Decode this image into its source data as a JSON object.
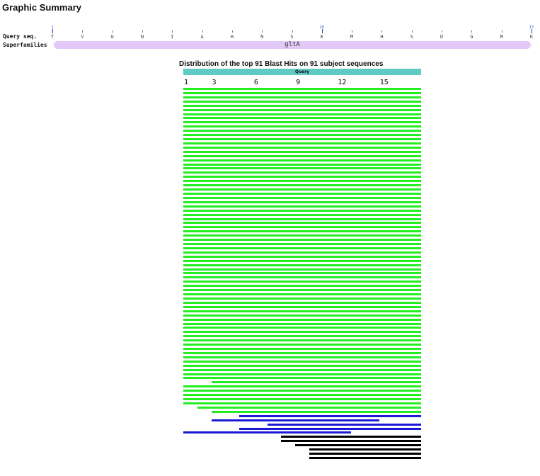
{
  "page": {
    "title": "Graphic Summary"
  },
  "cdd": {
    "query_label": "Query seq.",
    "superfamilies_label": "Superfamilies",
    "residues": [
      "T",
      "V",
      "G",
      "N",
      "I",
      "A",
      "H",
      "N",
      "S",
      "E",
      "M",
      "H",
      "S",
      "D",
      "G",
      "M",
      "K"
    ],
    "position_numbers": [
      {
        "pos": 1,
        "label": "1"
      },
      {
        "pos": 10,
        "label": "10"
      },
      {
        "pos": 17,
        "label": "17"
      }
    ],
    "superfamily": {
      "name": "gltA",
      "color": "#e2c9f7"
    }
  },
  "distribution": {
    "title": "Distribution of the top 91 Blast Hits on 91 subject sequences",
    "query_label": "Query",
    "query_color": "#5fc9c3",
    "query_length": 17,
    "axis_ticks": [
      "1",
      "3",
      "6",
      "9",
      "12",
      "15"
    ]
  },
  "score_colors": {
    "green": "#22ee22",
    "blue": "#1a1ad6",
    "black": "#000000"
  },
  "hits": [
    {
      "start": 1,
      "end": 17,
      "color": "green"
    },
    {
      "start": 1,
      "end": 17,
      "color": "green"
    },
    {
      "start": 1,
      "end": 17,
      "color": "green"
    },
    {
      "start": 1,
      "end": 17,
      "color": "green"
    },
    {
      "start": 1,
      "end": 17,
      "color": "green"
    },
    {
      "start": 1,
      "end": 17,
      "color": "green"
    },
    {
      "start": 1,
      "end": 17,
      "color": "green"
    },
    {
      "start": 1,
      "end": 17,
      "color": "green"
    },
    {
      "start": 1,
      "end": 17,
      "color": "green"
    },
    {
      "start": 1,
      "end": 17,
      "color": "green"
    },
    {
      "start": 1,
      "end": 17,
      "color": "green"
    },
    {
      "start": 1,
      "end": 17,
      "color": "green"
    },
    {
      "start": 1,
      "end": 17,
      "color": "green"
    },
    {
      "start": 1,
      "end": 17,
      "color": "green"
    },
    {
      "start": 1,
      "end": 17,
      "color": "green"
    },
    {
      "start": 1,
      "end": 17,
      "color": "green"
    },
    {
      "start": 1,
      "end": 17,
      "color": "green"
    },
    {
      "start": 1,
      "end": 17,
      "color": "green"
    },
    {
      "start": 1,
      "end": 17,
      "color": "green"
    },
    {
      "start": 1,
      "end": 17,
      "color": "green"
    },
    {
      "start": 1,
      "end": 17,
      "color": "green"
    },
    {
      "start": 1,
      "end": 17,
      "color": "green"
    },
    {
      "start": 1,
      "end": 17,
      "color": "green"
    },
    {
      "start": 1,
      "end": 17,
      "color": "green"
    },
    {
      "start": 1,
      "end": 17,
      "color": "green"
    },
    {
      "start": 1,
      "end": 17,
      "color": "green"
    },
    {
      "start": 1,
      "end": 17,
      "color": "green"
    },
    {
      "start": 1,
      "end": 17,
      "color": "green"
    },
    {
      "start": 1,
      "end": 17,
      "color": "green"
    },
    {
      "start": 1,
      "end": 17,
      "color": "green"
    },
    {
      "start": 1,
      "end": 17,
      "color": "green"
    },
    {
      "start": 1,
      "end": 17,
      "color": "green"
    },
    {
      "start": 1,
      "end": 17,
      "color": "green"
    },
    {
      "start": 1,
      "end": 17,
      "color": "green"
    },
    {
      "start": 1,
      "end": 17,
      "color": "green"
    },
    {
      "start": 1,
      "end": 17,
      "color": "green"
    },
    {
      "start": 1,
      "end": 17,
      "color": "green"
    },
    {
      "start": 1,
      "end": 17,
      "color": "green"
    },
    {
      "start": 1,
      "end": 17,
      "color": "green"
    },
    {
      "start": 1,
      "end": 17,
      "color": "green"
    },
    {
      "start": 1,
      "end": 17,
      "color": "green"
    },
    {
      "start": 1,
      "end": 17,
      "color": "green"
    },
    {
      "start": 1,
      "end": 17,
      "color": "green"
    },
    {
      "start": 1,
      "end": 17,
      "color": "green"
    },
    {
      "start": 1,
      "end": 17,
      "color": "green"
    },
    {
      "start": 1,
      "end": 17,
      "color": "green"
    },
    {
      "start": 1,
      "end": 17,
      "color": "green"
    },
    {
      "start": 1,
      "end": 17,
      "color": "green"
    },
    {
      "start": 1,
      "end": 17,
      "color": "green"
    },
    {
      "start": 1,
      "end": 17,
      "color": "green"
    },
    {
      "start": 1,
      "end": 17,
      "color": "green"
    },
    {
      "start": 1,
      "end": 17,
      "color": "green"
    },
    {
      "start": 1,
      "end": 17,
      "color": "green"
    },
    {
      "start": 1,
      "end": 17,
      "color": "green"
    },
    {
      "start": 1,
      "end": 17,
      "color": "green"
    },
    {
      "start": 1,
      "end": 17,
      "color": "green"
    },
    {
      "start": 1,
      "end": 17,
      "color": "green"
    },
    {
      "start": 1,
      "end": 17,
      "color": "green"
    },
    {
      "start": 1,
      "end": 17,
      "color": "green"
    },
    {
      "start": 1,
      "end": 17,
      "color": "green"
    },
    {
      "start": 1,
      "end": 17,
      "color": "green"
    },
    {
      "start": 1,
      "end": 17,
      "color": "green"
    },
    {
      "start": 1,
      "end": 17,
      "color": "green"
    },
    {
      "start": 1,
      "end": 17,
      "color": "green"
    },
    {
      "start": 1,
      "end": 17,
      "color": "green"
    },
    {
      "start": 1,
      "end": 17,
      "color": "green"
    },
    {
      "start": 1,
      "end": 17,
      "color": "green"
    },
    {
      "start": 1,
      "end": 17,
      "color": "green"
    },
    {
      "start": 1,
      "end": 17,
      "color": "green"
    },
    {
      "start": 1,
      "end": 17,
      "color": "green"
    },
    {
      "start": 3,
      "end": 17,
      "color": "green"
    },
    {
      "start": 1,
      "end": 17,
      "color": "green"
    },
    {
      "start": 1,
      "end": 17,
      "color": "green"
    },
    {
      "start": 1,
      "end": 17,
      "color": "green"
    },
    {
      "start": 1,
      "end": 17,
      "color": "green"
    },
    {
      "start": 1,
      "end": 17,
      "color": "green"
    },
    {
      "start": 2,
      "end": 17,
      "color": "green"
    },
    {
      "start": 3,
      "end": 17,
      "color": "green"
    },
    {
      "start": 5,
      "end": 17,
      "color": "blue"
    },
    {
      "start": 3,
      "end": 14,
      "color": "blue"
    },
    {
      "start": 7,
      "end": 17,
      "color": "blue"
    },
    {
      "start": 5,
      "end": 17,
      "color": "blue"
    },
    {
      "start": 1,
      "end": 12,
      "color": "blue"
    },
    {
      "start": 8,
      "end": 17,
      "color": "black"
    },
    {
      "start": 8,
      "end": 17,
      "color": "black"
    },
    {
      "start": 9,
      "end": 17,
      "color": "black"
    },
    {
      "start": 10,
      "end": 17,
      "color": "black"
    },
    {
      "start": 10,
      "end": 17,
      "color": "black"
    },
    {
      "start": 10,
      "end": 17,
      "color": "black"
    }
  ]
}
